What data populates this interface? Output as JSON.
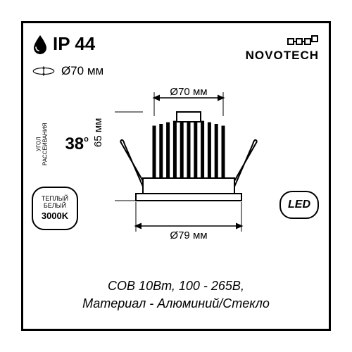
{
  "ip": {
    "label": "IP 44",
    "fontsize": 26
  },
  "cutout": {
    "diameter_label": "Ø70 мм"
  },
  "logo": {
    "text": "NOVOTECH",
    "fontsize": 17
  },
  "angle_badge": {
    "line1": "УГОЛ",
    "line2": "РАССЕИВАНИЯ",
    "value": "38",
    "deg": "o"
  },
  "warm_badge": {
    "line1": "ТЕПЛЫЙ",
    "line2": "БЕЛЫЙ",
    "value": "3000K"
  },
  "led_badge": {
    "text": "LED",
    "fontsize": 16
  },
  "dims": {
    "top_width": "Ø70 мм",
    "height": "65 мм",
    "bottom_width": "Ø79 мм",
    "label_fontsize": 15
  },
  "specs": {
    "line1": "COB 10Вт, 100 - 265В,",
    "line2": "Материал - Алюминий/Стекло",
    "fontsize": 18
  },
  "drawing": {
    "body_fill": "#ffffff",
    "stroke": "#000000",
    "fin_count": 11
  },
  "colors": {
    "frame": "#000000",
    "bg": "#ffffff"
  }
}
